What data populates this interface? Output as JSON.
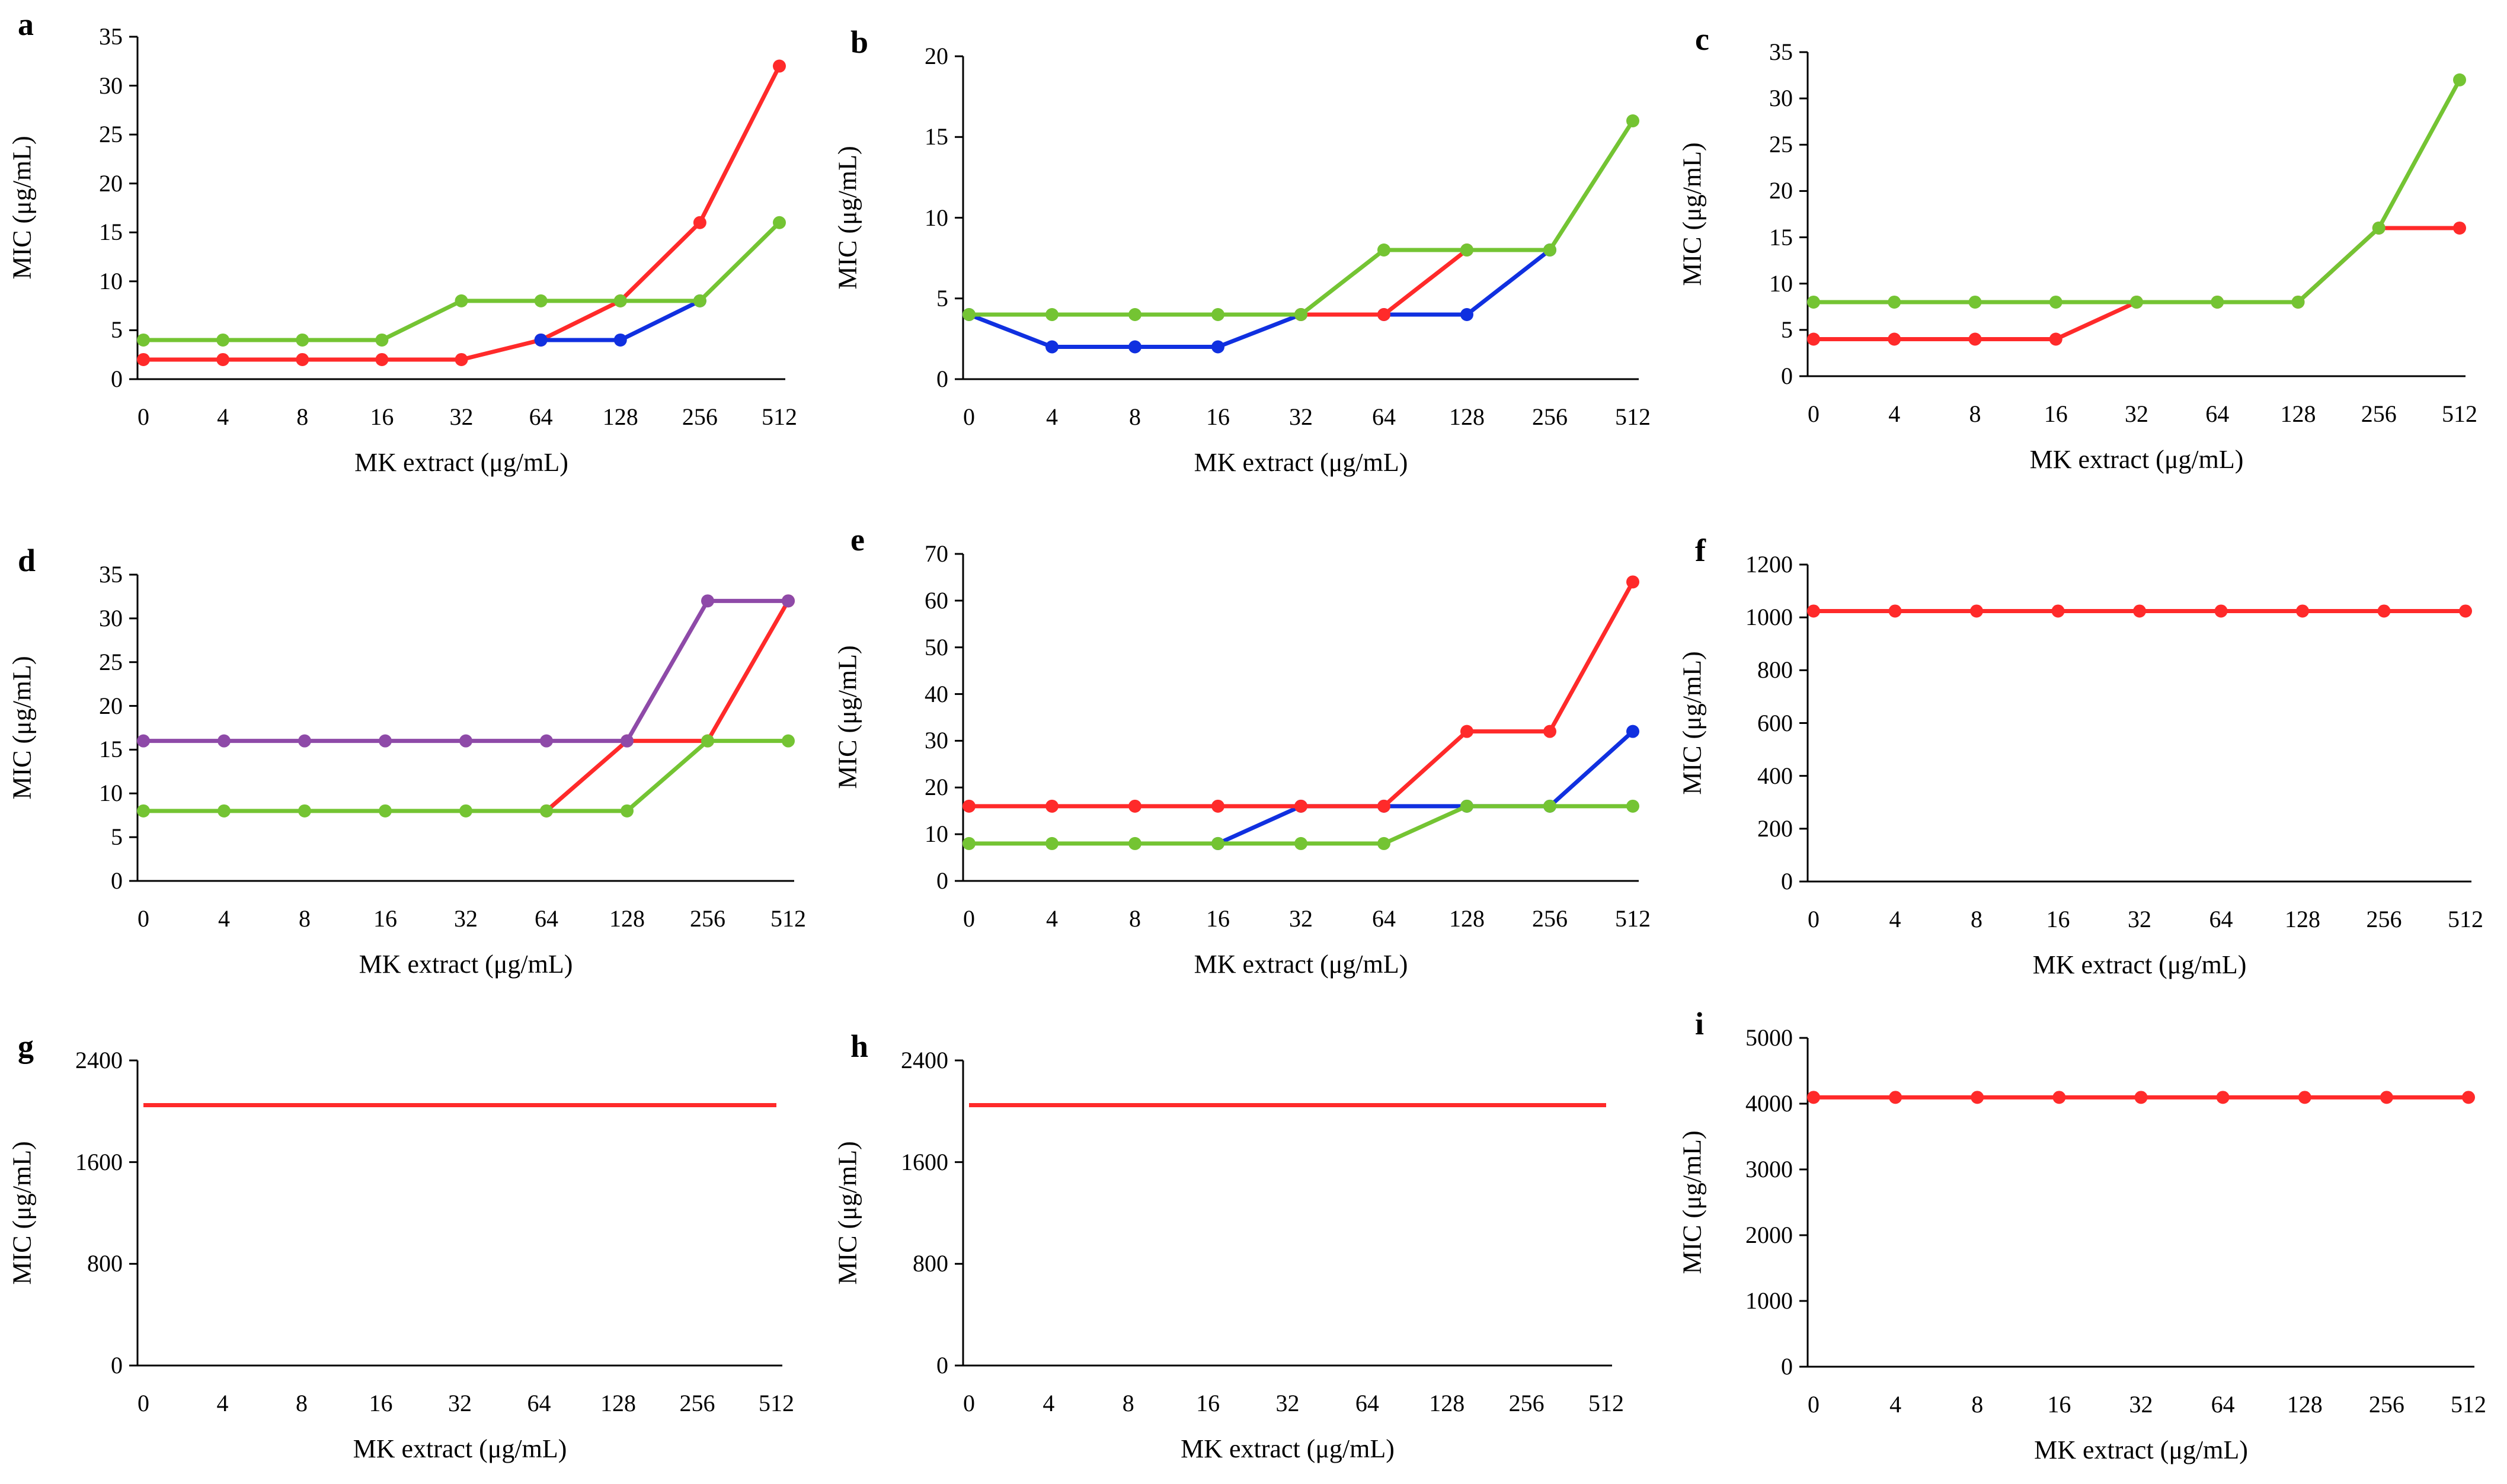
{
  "colors": {
    "red": "#ff2a2a",
    "blue": "#1030e0",
    "green": "#74c433",
    "purple": "#8e4aa8",
    "axis": "#000000"
  },
  "chart_data": [
    {
      "panel": "a",
      "type": "line",
      "xlabel": "MK extract (μg/mL)",
      "ylabel": "MIC (μg/mL)",
      "categories": [
        "0",
        "4",
        "8",
        "16",
        "32",
        "64",
        "128",
        "256",
        "512"
      ],
      "ylim": [
        0,
        35
      ],
      "yticks": [
        "0",
        "5",
        "10",
        "15",
        "20",
        "25",
        "30",
        "35"
      ],
      "series": [
        {
          "name": "red",
          "color": "#ff2a2a",
          "markers": true,
          "values": [
            2,
            2,
            2,
            2,
            2,
            4,
            8,
            16,
            32
          ]
        },
        {
          "name": "blue",
          "color": "#1030e0",
          "markers": true,
          "values": [
            null,
            null,
            null,
            null,
            null,
            4,
            4,
            8,
            null
          ]
        },
        {
          "name": "green",
          "color": "#74c433",
          "markers": true,
          "values": [
            4,
            4,
            4,
            4,
            8,
            8,
            8,
            8,
            16
          ]
        }
      ]
    },
    {
      "panel": "b",
      "type": "line",
      "xlabel": "MK extract (μg/mL)",
      "ylabel": "MIC (μg/mL)",
      "categories": [
        "0",
        "4",
        "8",
        "16",
        "32",
        "64",
        "128",
        "256",
        "512"
      ],
      "ylim": [
        0,
        20
      ],
      "yticks": [
        "0",
        "5",
        "10",
        "15",
        "20"
      ],
      "series": [
        {
          "name": "blue",
          "color": "#1030e0",
          "markers": true,
          "values": [
            4,
            2,
            2,
            2,
            4,
            4,
            4,
            8,
            null
          ]
        },
        {
          "name": "red",
          "color": "#ff2a2a",
          "markers": true,
          "values": [
            null,
            null,
            null,
            null,
            4,
            4,
            8,
            null,
            null
          ]
        },
        {
          "name": "green",
          "color": "#74c433",
          "markers": true,
          "values": [
            4,
            4,
            4,
            4,
            4,
            8,
            8,
            8,
            16
          ]
        }
      ]
    },
    {
      "panel": "c",
      "type": "line",
      "xlabel": "MK extract (μg/mL)",
      "ylabel": "MIC (μg/mL)",
      "categories": [
        "0",
        "4",
        "8",
        "16",
        "32",
        "64",
        "128",
        "256",
        "512"
      ],
      "ylim": [
        0,
        35
      ],
      "yticks": [
        "0",
        "5",
        "10",
        "15",
        "20",
        "25",
        "30",
        "35"
      ],
      "series": [
        {
          "name": "red",
          "color": "#ff2a2a",
          "markers": true,
          "values": [
            4,
            4,
            4,
            4,
            8,
            8,
            8,
            16,
            16
          ]
        },
        {
          "name": "green",
          "color": "#74c433",
          "markers": true,
          "values": [
            8,
            8,
            8,
            8,
            8,
            8,
            8,
            16,
            32
          ]
        }
      ]
    },
    {
      "panel": "d",
      "type": "line",
      "xlabel": "MK extract (μg/mL)",
      "ylabel": "MIC (μg/mL)",
      "categories": [
        "0",
        "4",
        "8",
        "16",
        "32",
        "64",
        "128",
        "256",
        "512"
      ],
      "ylim": [
        0,
        35
      ],
      "yticks": [
        "0",
        "5",
        "10",
        "15",
        "20",
        "25",
        "30",
        "35"
      ],
      "series": [
        {
          "name": "red",
          "color": "#ff2a2a",
          "markers": true,
          "values": [
            null,
            null,
            null,
            null,
            null,
            8,
            16,
            16,
            32
          ]
        },
        {
          "name": "green",
          "color": "#74c433",
          "markers": true,
          "values": [
            8,
            8,
            8,
            8,
            8,
            8,
            8,
            16,
            16
          ]
        },
        {
          "name": "purple",
          "color": "#8e4aa8",
          "markers": true,
          "values": [
            16,
            16,
            16,
            16,
            16,
            16,
            16,
            32,
            32
          ]
        }
      ]
    },
    {
      "panel": "e",
      "type": "line",
      "xlabel": "MK extract (μg/mL)",
      "ylabel": "MIC (μg/mL)",
      "categories": [
        "0",
        "4",
        "8",
        "16",
        "32",
        "64",
        "128",
        "256",
        "512"
      ],
      "ylim": [
        0,
        70
      ],
      "yticks": [
        "0",
        "10",
        "20",
        "30",
        "40",
        "50",
        "60",
        "70"
      ],
      "series": [
        {
          "name": "blue",
          "color": "#1030e0",
          "markers": true,
          "values": [
            null,
            null,
            null,
            8,
            16,
            16,
            16,
            16,
            32
          ]
        },
        {
          "name": "green",
          "color": "#74c433",
          "markers": true,
          "values": [
            8,
            8,
            8,
            8,
            8,
            8,
            16,
            16,
            16
          ]
        },
        {
          "name": "red",
          "color": "#ff2a2a",
          "markers": true,
          "values": [
            16,
            16,
            16,
            16,
            16,
            16,
            32,
            32,
            64
          ]
        }
      ]
    },
    {
      "panel": "f",
      "type": "line",
      "xlabel": "MK extract (μg/mL)",
      "ylabel": "MIC (μg/mL)",
      "categories": [
        "0",
        "4",
        "8",
        "16",
        "32",
        "64",
        "128",
        "256",
        "512"
      ],
      "ylim": [
        0,
        1200
      ],
      "yticks": [
        "0",
        "200",
        "400",
        "600",
        "800",
        "1000",
        "1200"
      ],
      "series": [
        {
          "name": "red",
          "color": "#ff2a2a",
          "markers": true,
          "values": [
            1024,
            1024,
            1024,
            1024,
            1024,
            1024,
            1024,
            1024,
            1024
          ]
        }
      ]
    },
    {
      "panel": "g",
      "type": "line",
      "xlabel": "MK extract (μg/mL)",
      "ylabel": "MIC (μg/mL)",
      "categories": [
        "0",
        "4",
        "8",
        "16",
        "32",
        "64",
        "128",
        "256",
        "512"
      ],
      "ylim": [
        0,
        2400
      ],
      "yticks": [
        "0",
        "800",
        "1600",
        "2400"
      ],
      "series": [
        {
          "name": "red",
          "color": "#ff2a2a",
          "markers": false,
          "values": [
            2048,
            2048,
            2048,
            2048,
            2048,
            2048,
            2048,
            2048,
            2048
          ]
        }
      ]
    },
    {
      "panel": "h",
      "type": "line",
      "xlabel": "MK extract (μg/mL)",
      "ylabel": "MIC (μg/mL)",
      "categories": [
        "0",
        "4",
        "8",
        "16",
        "32",
        "64",
        "128",
        "256",
        "512"
      ],
      "ylim": [
        0,
        2400
      ],
      "yticks": [
        "0",
        "800",
        "1600",
        "2400"
      ],
      "series": [
        {
          "name": "red",
          "color": "#ff2a2a",
          "markers": false,
          "values": [
            2048,
            2048,
            2048,
            2048,
            2048,
            2048,
            2048,
            2048,
            2048
          ]
        }
      ]
    },
    {
      "panel": "i",
      "type": "line",
      "xlabel": "MK extract (μg/mL)",
      "ylabel": "MIC (μg/mL)",
      "categories": [
        "0",
        "4",
        "8",
        "16",
        "32",
        "64",
        "128",
        "256",
        "512"
      ],
      "ylim": [
        0,
        5000
      ],
      "yticks": [
        "0",
        "1000",
        "2000",
        "3000",
        "4000",
        "5000"
      ],
      "series": [
        {
          "name": "red",
          "color": "#ff2a2a",
          "markers": true,
          "values": [
            4096,
            4096,
            4096,
            4096,
            4096,
            4096,
            4096,
            4096,
            4096
          ]
        }
      ]
    }
  ]
}
